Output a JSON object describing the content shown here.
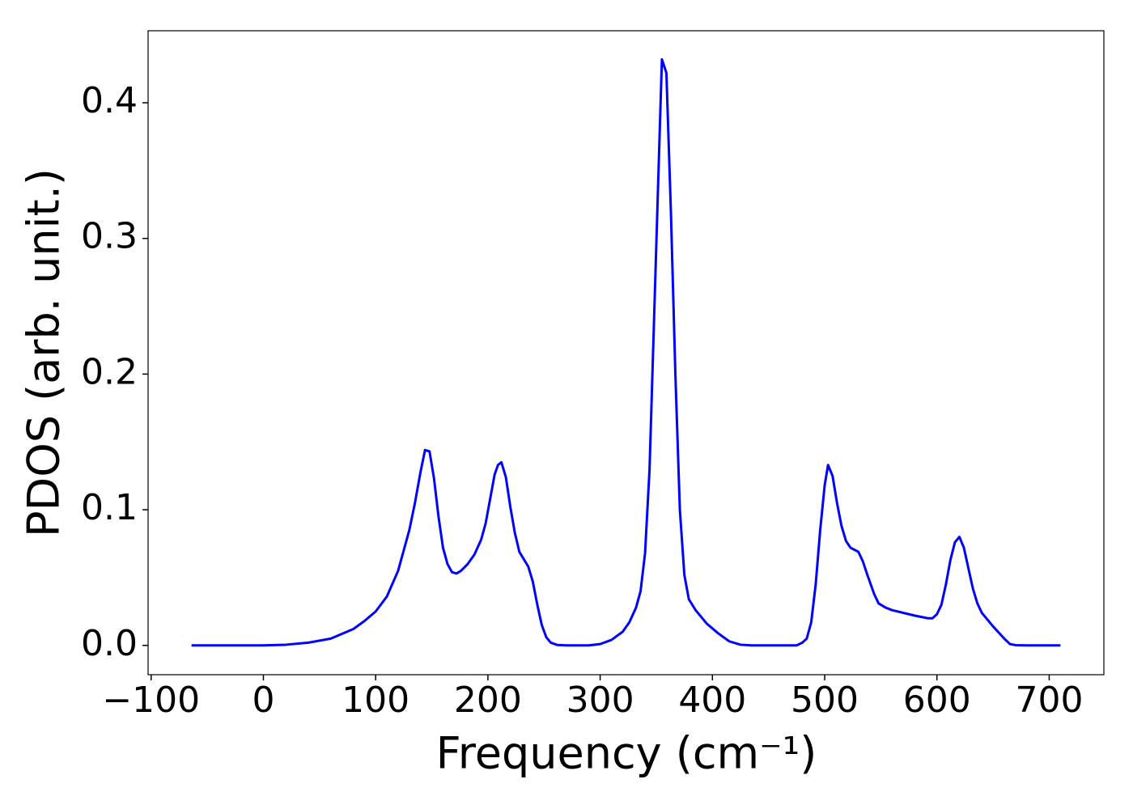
{
  "chart_data": {
    "type": "line",
    "xlabel": "Frequency (cm⁻¹)",
    "ylabel": "PDOS (arb. unit.)",
    "xlim": [
      -102.7,
      748.7
    ],
    "ylim": [
      -0.0216,
      0.4531
    ],
    "xticks": [
      {
        "value": -100,
        "label": "−100"
      },
      0,
      100,
      200,
      300,
      400,
      500,
      600,
      700
    ],
    "yticks": [
      {
        "value": 0,
        "label": "0.0"
      },
      0.1,
      0.2,
      0.3,
      0.4
    ],
    "grid": false,
    "series": [
      {
        "name": "PDOS",
        "color": "#0000ff",
        "x": [
          -64,
          -30,
          0,
          20,
          40,
          60,
          80,
          90,
          100,
          110,
          120,
          130,
          135,
          140,
          144,
          148,
          152,
          156,
          160,
          164,
          168,
          172,
          176,
          182,
          188,
          194,
          198,
          202,
          206,
          209,
          212,
          216,
          220,
          224,
          228,
          236,
          240,
          244,
          248,
          252,
          256,
          262,
          270,
          290,
          300,
          310,
          320,
          326,
          332,
          336,
          340,
          344,
          348,
          352,
          355,
          359,
          363,
          367,
          371,
          375,
          379,
          385,
          395,
          405,
          415,
          425,
          435,
          475,
          480,
          484,
          488,
          492,
          496,
          500,
          503,
          507,
          511,
          515,
          519,
          523,
          530,
          534,
          538,
          544,
          548,
          554,
          560,
          580,
          592,
          596,
          600,
          604,
          608,
          612,
          616,
          620,
          624,
          628,
          632,
          636,
          640,
          650,
          660,
          665,
          670,
          680,
          710
        ],
        "values": [
          0,
          0,
          0,
          0.0005,
          0.002,
          0.005,
          0.012,
          0.018,
          0.025,
          0.036,
          0.055,
          0.085,
          0.105,
          0.128,
          0.144,
          0.143,
          0.123,
          0.095,
          0.072,
          0.06,
          0.054,
          0.053,
          0.055,
          0.06,
          0.067,
          0.078,
          0.09,
          0.108,
          0.126,
          0.133,
          0.135,
          0.124,
          0.102,
          0.083,
          0.069,
          0.058,
          0.047,
          0.03,
          0.015,
          0.006,
          0.002,
          0.0003,
          0,
          0,
          0.001,
          0.004,
          0.01,
          0.017,
          0.028,
          0.04,
          0.068,
          0.13,
          0.24,
          0.35,
          0.432,
          0.422,
          0.32,
          0.2,
          0.1,
          0.052,
          0.034,
          0.026,
          0.016,
          0.009,
          0.003,
          0.0005,
          0,
          0,
          0.002,
          0.005,
          0.017,
          0.045,
          0.085,
          0.118,
          0.133,
          0.125,
          0.105,
          0.088,
          0.077,
          0.072,
          0.069,
          0.062,
          0.052,
          0.038,
          0.031,
          0.028,
          0.026,
          0.022,
          0.02,
          0.02,
          0.023,
          0.03,
          0.045,
          0.063,
          0.076,
          0.08,
          0.072,
          0.057,
          0.042,
          0.031,
          0.024,
          0.014,
          0.005,
          0.001,
          0.0002,
          0,
          0
        ]
      }
    ]
  }
}
